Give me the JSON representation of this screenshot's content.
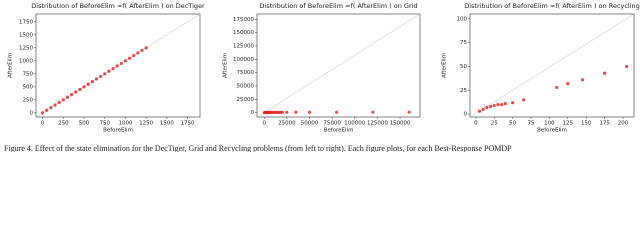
{
  "chart_data": [
    {
      "type": "scatter",
      "title": "Distribution of BeforeElim =f( AfterElim ) on DecTiger",
      "x_label": "BeforeElim",
      "y_label": "AfterElim",
      "color": "#e02020",
      "x": [
        0,
        50,
        100,
        150,
        200,
        250,
        300,
        350,
        400,
        450,
        500,
        550,
        600,
        650,
        700,
        750,
        800,
        850,
        900,
        950,
        1000,
        1050,
        1100,
        1150,
        1200,
        1250
      ],
      "values": [
        0,
        50,
        100,
        150,
        200,
        250,
        300,
        350,
        400,
        450,
        500,
        550,
        600,
        650,
        700,
        750,
        800,
        850,
        900,
        950,
        1000,
        1050,
        1100,
        1150,
        1200,
        1250
      ],
      "xlim": [
        -80,
        1900
      ],
      "ylim": [
        -80,
        1900
      ],
      "xticks": [
        0,
        250,
        500,
        750,
        1000,
        1250,
        1500,
        1750
      ],
      "yticks": [
        0,
        250,
        500,
        750,
        1000,
        1250,
        1500,
        1750
      ]
    },
    {
      "type": "scatter",
      "title": "Distribution of BeforeElim =f( AfterElim ) on Grid",
      "x_label": "BeforeElim",
      "y_label": "AfterElim",
      "color": "#e02020",
      "x": [
        200,
        800,
        1500,
        2500,
        3500,
        5000,
        6500,
        8000,
        10000,
        12000,
        14000,
        16000,
        18000,
        20000,
        25000,
        35000,
        50000,
        80000,
        120000,
        160000
      ],
      "values": [
        300,
        400,
        500,
        400,
        600,
        500,
        600,
        500,
        700,
        600,
        700,
        600,
        700,
        800,
        800,
        900,
        900,
        1000,
        1000,
        1100
      ],
      "xlim": [
        -8000,
        172000
      ],
      "ylim": [
        -8000,
        185000
      ],
      "xticks": [
        0,
        25000,
        50000,
        75000,
        100000,
        125000,
        150000
      ],
      "yticks": [
        0,
        25000,
        50000,
        75000,
        100000,
        125000,
        150000,
        175000
      ]
    },
    {
      "type": "scatter",
      "title": "Distribution of BeforeElim =f( AfterElim ) on Recycling",
      "x_label": "BeforeElim",
      "y_label": "AfterElim",
      "color": "#e02020",
      "x": [
        5,
        10,
        15,
        20,
        25,
        30,
        35,
        40,
        50,
        65,
        110,
        125,
        145,
        175,
        205
      ],
      "values": [
        3,
        5,
        7,
        8,
        9,
        10,
        10,
        11,
        12,
        15,
        28,
        32,
        36,
        43,
        50
      ],
      "xlim": [
        -8,
        215
      ],
      "ylim": [
        -3,
        105
      ],
      "xticks": [
        0,
        25,
        50,
        75,
        100,
        125,
        150,
        175,
        200
      ],
      "yticks": [
        0,
        25,
        50,
        75,
        100
      ]
    }
  ],
  "caption": "Figure 4.  Effect of the state elimination for the DecTiger, Grid and Recycling problems (from left to right). Each figure plots, for each Best-Response POMDP"
}
